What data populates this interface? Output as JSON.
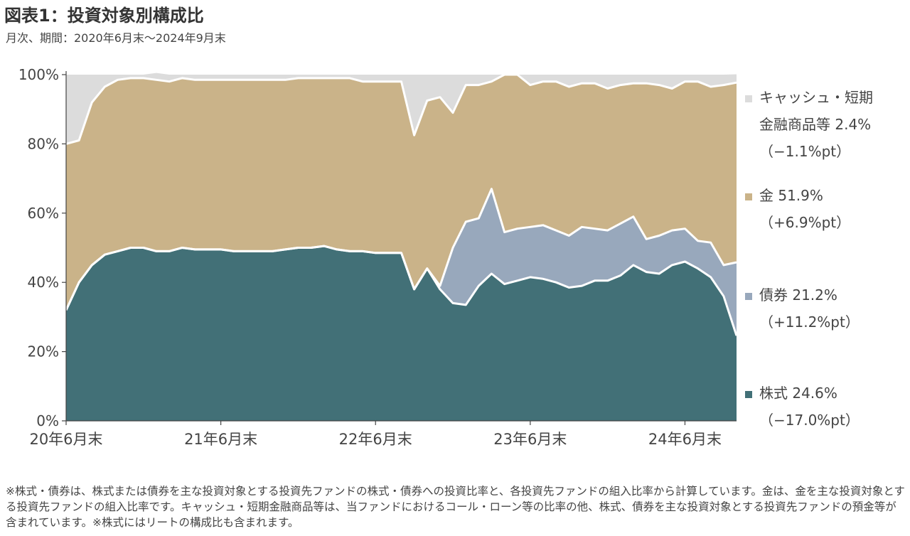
{
  "title": "図表1：投資対象別構成比",
  "subtitle": "月次、期間：2020年6月末～2024年9月末",
  "legend": [
    {
      "line1": "キャッシュ・短期",
      "line2": "金融商品等 2.4%",
      "line3": "（−1.1%pt）",
      "color": "#dcdcdc"
    },
    {
      "line1": "金 51.9%",
      "line2": "（+6.9%pt）",
      "line3": "",
      "color": "#cab389"
    },
    {
      "line1": "債券 21.2%",
      "line2": "（+11.2%pt）",
      "line3": "",
      "color": "#98a8bc"
    },
    {
      "line1": "株式 24.6%",
      "line2": "（−17.0%pt）",
      "line3": "",
      "color": "#427077"
    }
  ],
  "note": "※株式・債券は、株式または債券を主な投資対象とする投資先ファンドの株式・債券への投資比率と、各投資先ファンドの組入比率から計算しています。金は、金を主な投資対象とする投資先ファンドの組入比率です。キャッシュ・短期金融商品等は、当ファンドにおけるコール・ローン等の比率の他、株式、債券を主な投資対象とする投資先ファンドの預金等が含まれています。※株式にはリートの構成比も含まれます。",
  "chart_data": {
    "type": "area",
    "stacked": true,
    "x_ticks": [
      "20年6月末",
      "21年6月末",
      "22年6月末",
      "23年6月末",
      "24年6月末"
    ],
    "y_ticks": [
      "0%",
      "20%",
      "40%",
      "60%",
      "80%",
      "100%"
    ],
    "ylim": [
      0,
      100
    ],
    "x_start": "2020-06",
    "x_end": "2024-09",
    "series": [
      {
        "name": "株式",
        "color": "#427077",
        "values": [
          32,
          40,
          45,
          48,
          49,
          50,
          50,
          49,
          49,
          50,
          49.5,
          49.5,
          49.5,
          49,
          49,
          49,
          49,
          49.5,
          50,
          50,
          50.5,
          49.5,
          49,
          49,
          48.5,
          48.5,
          48.5,
          38,
          44,
          38,
          34,
          33.5,
          39,
          42.5,
          39.5,
          40.5,
          41.5,
          41,
          40,
          38.5,
          39,
          40.5,
          40.5,
          42,
          45,
          43,
          42.5,
          45,
          46,
          44,
          41.5,
          36,
          24.6
        ]
      },
      {
        "name": "債券",
        "color": "#98a8bc",
        "values": [
          0,
          0,
          0,
          0,
          0,
          0,
          0,
          0,
          0,
          0,
          0,
          0,
          0,
          0,
          0,
          0,
          0,
          0,
          0,
          0,
          0,
          0,
          0,
          0,
          0,
          0,
          0,
          0,
          0,
          1,
          16,
          24,
          19.5,
          24.5,
          15,
          15,
          14.5,
          15.5,
          15,
          15,
          17,
          15,
          14.5,
          15,
          14,
          9.5,
          11,
          10,
          9.5,
          8,
          10,
          9,
          21.2
        ]
      },
      {
        "name": "金",
        "color": "#cab389",
        "values": [
          48,
          41,
          47,
          48.5,
          49.5,
          49,
          49,
          49.5,
          49,
          49,
          49,
          49,
          49,
          49.5,
          49.5,
          49.5,
          49.5,
          49,
          49,
          49,
          48.5,
          49.5,
          50,
          49,
          49.5,
          49.5,
          49.5,
          44.5,
          48.5,
          54.5,
          39,
          39.5,
          38.5,
          31,
          45.5,
          44.5,
          41,
          41.5,
          43,
          43,
          41.5,
          42,
          41,
          40,
          38.5,
          45,
          43.5,
          41,
          42.5,
          46,
          45,
          52,
          51.9
        ]
      },
      {
        "name": "キャッシュ・短期金融商品等",
        "color": "#dcdcdc",
        "values": [
          20,
          19,
          8,
          3.5,
          1.5,
          1,
          1,
          2,
          2,
          1,
          1.5,
          1.5,
          1.5,
          1.5,
          1.5,
          1.5,
          1.5,
          1.5,
          1,
          1,
          1,
          1,
          1,
          2,
          2,
          2,
          2,
          17.5,
          7.5,
          6.5,
          11,
          3,
          3,
          2,
          0,
          0,
          3,
          2,
          2,
          3.5,
          2.5,
          2.5,
          4,
          3,
          2.5,
          2.5,
          3,
          4,
          2,
          2,
          3.5,
          3,
          2.4
        ]
      }
    ]
  }
}
